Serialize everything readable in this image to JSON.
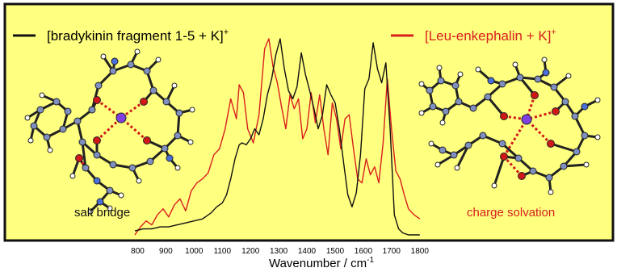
{
  "colors": {
    "background": "#ffff80",
    "frame": "#111111",
    "series_black": "#111111",
    "series_red": "#d81e1e",
    "atom_carbon": "#7f8fc0",
    "atom_oxygen": "#d01818",
    "atom_hydrogen": "#ffffff",
    "atom_nitrogen": "#4a6fd8",
    "atom_potassium": "#8040e0"
  },
  "molecules": {
    "left": {
      "label": "salt bridge",
      "label_color": "#111111"
    },
    "right": {
      "label": "charge solvation",
      "label_color": "#d81e1e"
    }
  },
  "chart_data": {
    "type": "line",
    "title": "",
    "xlabel_main": "Wavenumber / cm",
    "xlabel_sup": "-1",
    "ylabel": "",
    "xlim": [
      770,
      1815
    ],
    "ylim": [
      0,
      1
    ],
    "x_ticks": [
      800,
      900,
      1000,
      1100,
      1200,
      1300,
      1400,
      1500,
      1600,
      1700,
      1800
    ],
    "grid": false,
    "legend_placement": "top",
    "series": [
      {
        "name_main": "[bradykinin fragment 1-5 + K]",
        "name_sup": "+",
        "color": "#111111",
        "x": [
          790,
          820,
          850,
          880,
          910,
          940,
          970,
          1000,
          1030,
          1060,
          1080,
          1100,
          1115,
          1130,
          1145,
          1160,
          1170,
          1185,
          1200,
          1215,
          1230,
          1245,
          1260,
          1275,
          1290,
          1305,
          1320,
          1335,
          1350,
          1365,
          1380,
          1395,
          1410,
          1425,
          1440,
          1455,
          1470,
          1485,
          1500,
          1515,
          1530,
          1545,
          1560,
          1575,
          1590,
          1605,
          1620,
          1635,
          1650,
          1665,
          1680,
          1695,
          1710,
          1725,
          1740,
          1760,
          1780,
          1800
        ],
        "y": [
          0.04,
          0.05,
          0.05,
          0.06,
          0.06,
          0.07,
          0.08,
          0.09,
          0.1,
          0.13,
          0.16,
          0.18,
          0.22,
          0.3,
          0.4,
          0.47,
          0.48,
          0.47,
          0.5,
          0.55,
          0.52,
          0.6,
          0.72,
          0.8,
          0.92,
          1.0,
          0.85,
          0.74,
          0.7,
          0.76,
          0.93,
          0.82,
          0.74,
          0.65,
          0.55,
          0.62,
          0.77,
          0.72,
          0.68,
          0.55,
          0.38,
          0.22,
          0.16,
          0.23,
          0.42,
          0.75,
          0.8,
          0.98,
          0.85,
          0.78,
          0.88,
          0.55,
          0.12,
          0.05,
          0.03,
          0.02,
          0.02,
          0.02
        ]
      },
      {
        "name_main": "[Leu-enkephalin + K]",
        "name_sup": "+",
        "color": "#d81e1e",
        "x": [
          790,
          810,
          830,
          850,
          870,
          890,
          910,
          930,
          950,
          970,
          990,
          1010,
          1030,
          1050,
          1070,
          1090,
          1110,
          1130,
          1150,
          1160,
          1175,
          1190,
          1210,
          1230,
          1250,
          1265,
          1280,
          1295,
          1310,
          1325,
          1340,
          1355,
          1370,
          1385,
          1400,
          1415,
          1430,
          1445,
          1460,
          1475,
          1490,
          1505,
          1520,
          1535,
          1550,
          1565,
          1580,
          1595,
          1610,
          1625,
          1640,
          1655,
          1670,
          1685,
          1700,
          1715,
          1730,
          1745,
          1760,
          1780,
          1800
        ],
        "y": [
          0.02,
          0.06,
          0.09,
          0.07,
          0.12,
          0.15,
          0.11,
          0.17,
          0.2,
          0.14,
          0.24,
          0.28,
          0.3,
          0.33,
          0.42,
          0.45,
          0.55,
          0.7,
          0.6,
          0.77,
          0.73,
          0.55,
          0.48,
          0.62,
          0.95,
          1.0,
          0.86,
          0.78,
          0.66,
          0.55,
          0.72,
          0.65,
          0.7,
          0.5,
          0.55,
          0.73,
          0.58,
          0.72,
          0.55,
          0.42,
          0.68,
          0.6,
          0.45,
          0.6,
          0.62,
          0.45,
          0.3,
          0.28,
          0.4,
          0.32,
          0.36,
          0.28,
          0.48,
          0.8,
          0.55,
          0.34,
          0.3,
          0.22,
          0.15,
          0.12,
          0.1
        ]
      }
    ]
  }
}
